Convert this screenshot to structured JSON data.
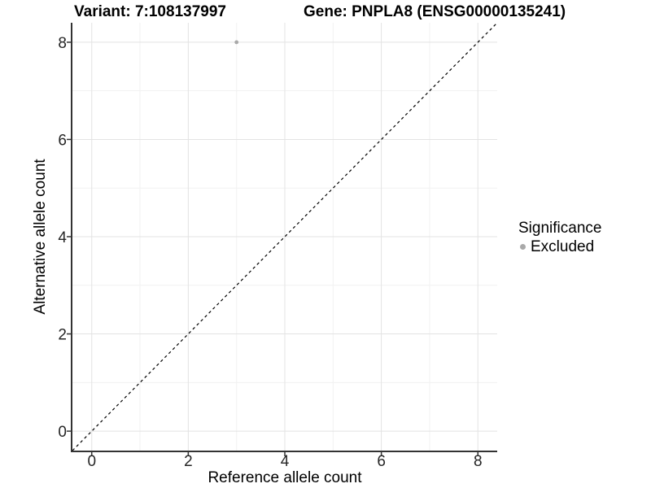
{
  "chart_data": {
    "type": "scatter",
    "titles": [
      "Variant: 7:108137997",
      "Gene: PNPLA8 (ENSG00000135241)"
    ],
    "xlabel": "Reference allele count",
    "ylabel": "Alternative allele count",
    "xlim": [
      -0.4,
      8.4
    ],
    "ylim": [
      -0.4,
      8.4
    ],
    "x_ticks": [
      0,
      2,
      4,
      6,
      8
    ],
    "y_ticks": [
      0,
      2,
      4,
      6,
      8
    ],
    "x_minor_ticks": [
      1,
      3,
      5,
      7
    ],
    "y_minor_ticks": [
      1,
      3,
      5,
      7
    ],
    "grid": "major+minor",
    "points": [
      {
        "x": 3,
        "y": 8,
        "series": "Excluded"
      }
    ],
    "reference_line": {
      "type": "identity",
      "style": "dashed",
      "color": "#000000"
    },
    "legend": {
      "title": "Significance",
      "position": "right",
      "entries": [
        {
          "label": "Excluded",
          "color": "#a9a9a9",
          "marker": "circle"
        }
      ]
    },
    "colors": {
      "background": "#ffffff",
      "grid_major": "#e3e3e3",
      "grid_minor": "#f1f1f1",
      "axis_line": "#333333",
      "tick_mark": "#333333",
      "tick_label": "#262626"
    }
  }
}
